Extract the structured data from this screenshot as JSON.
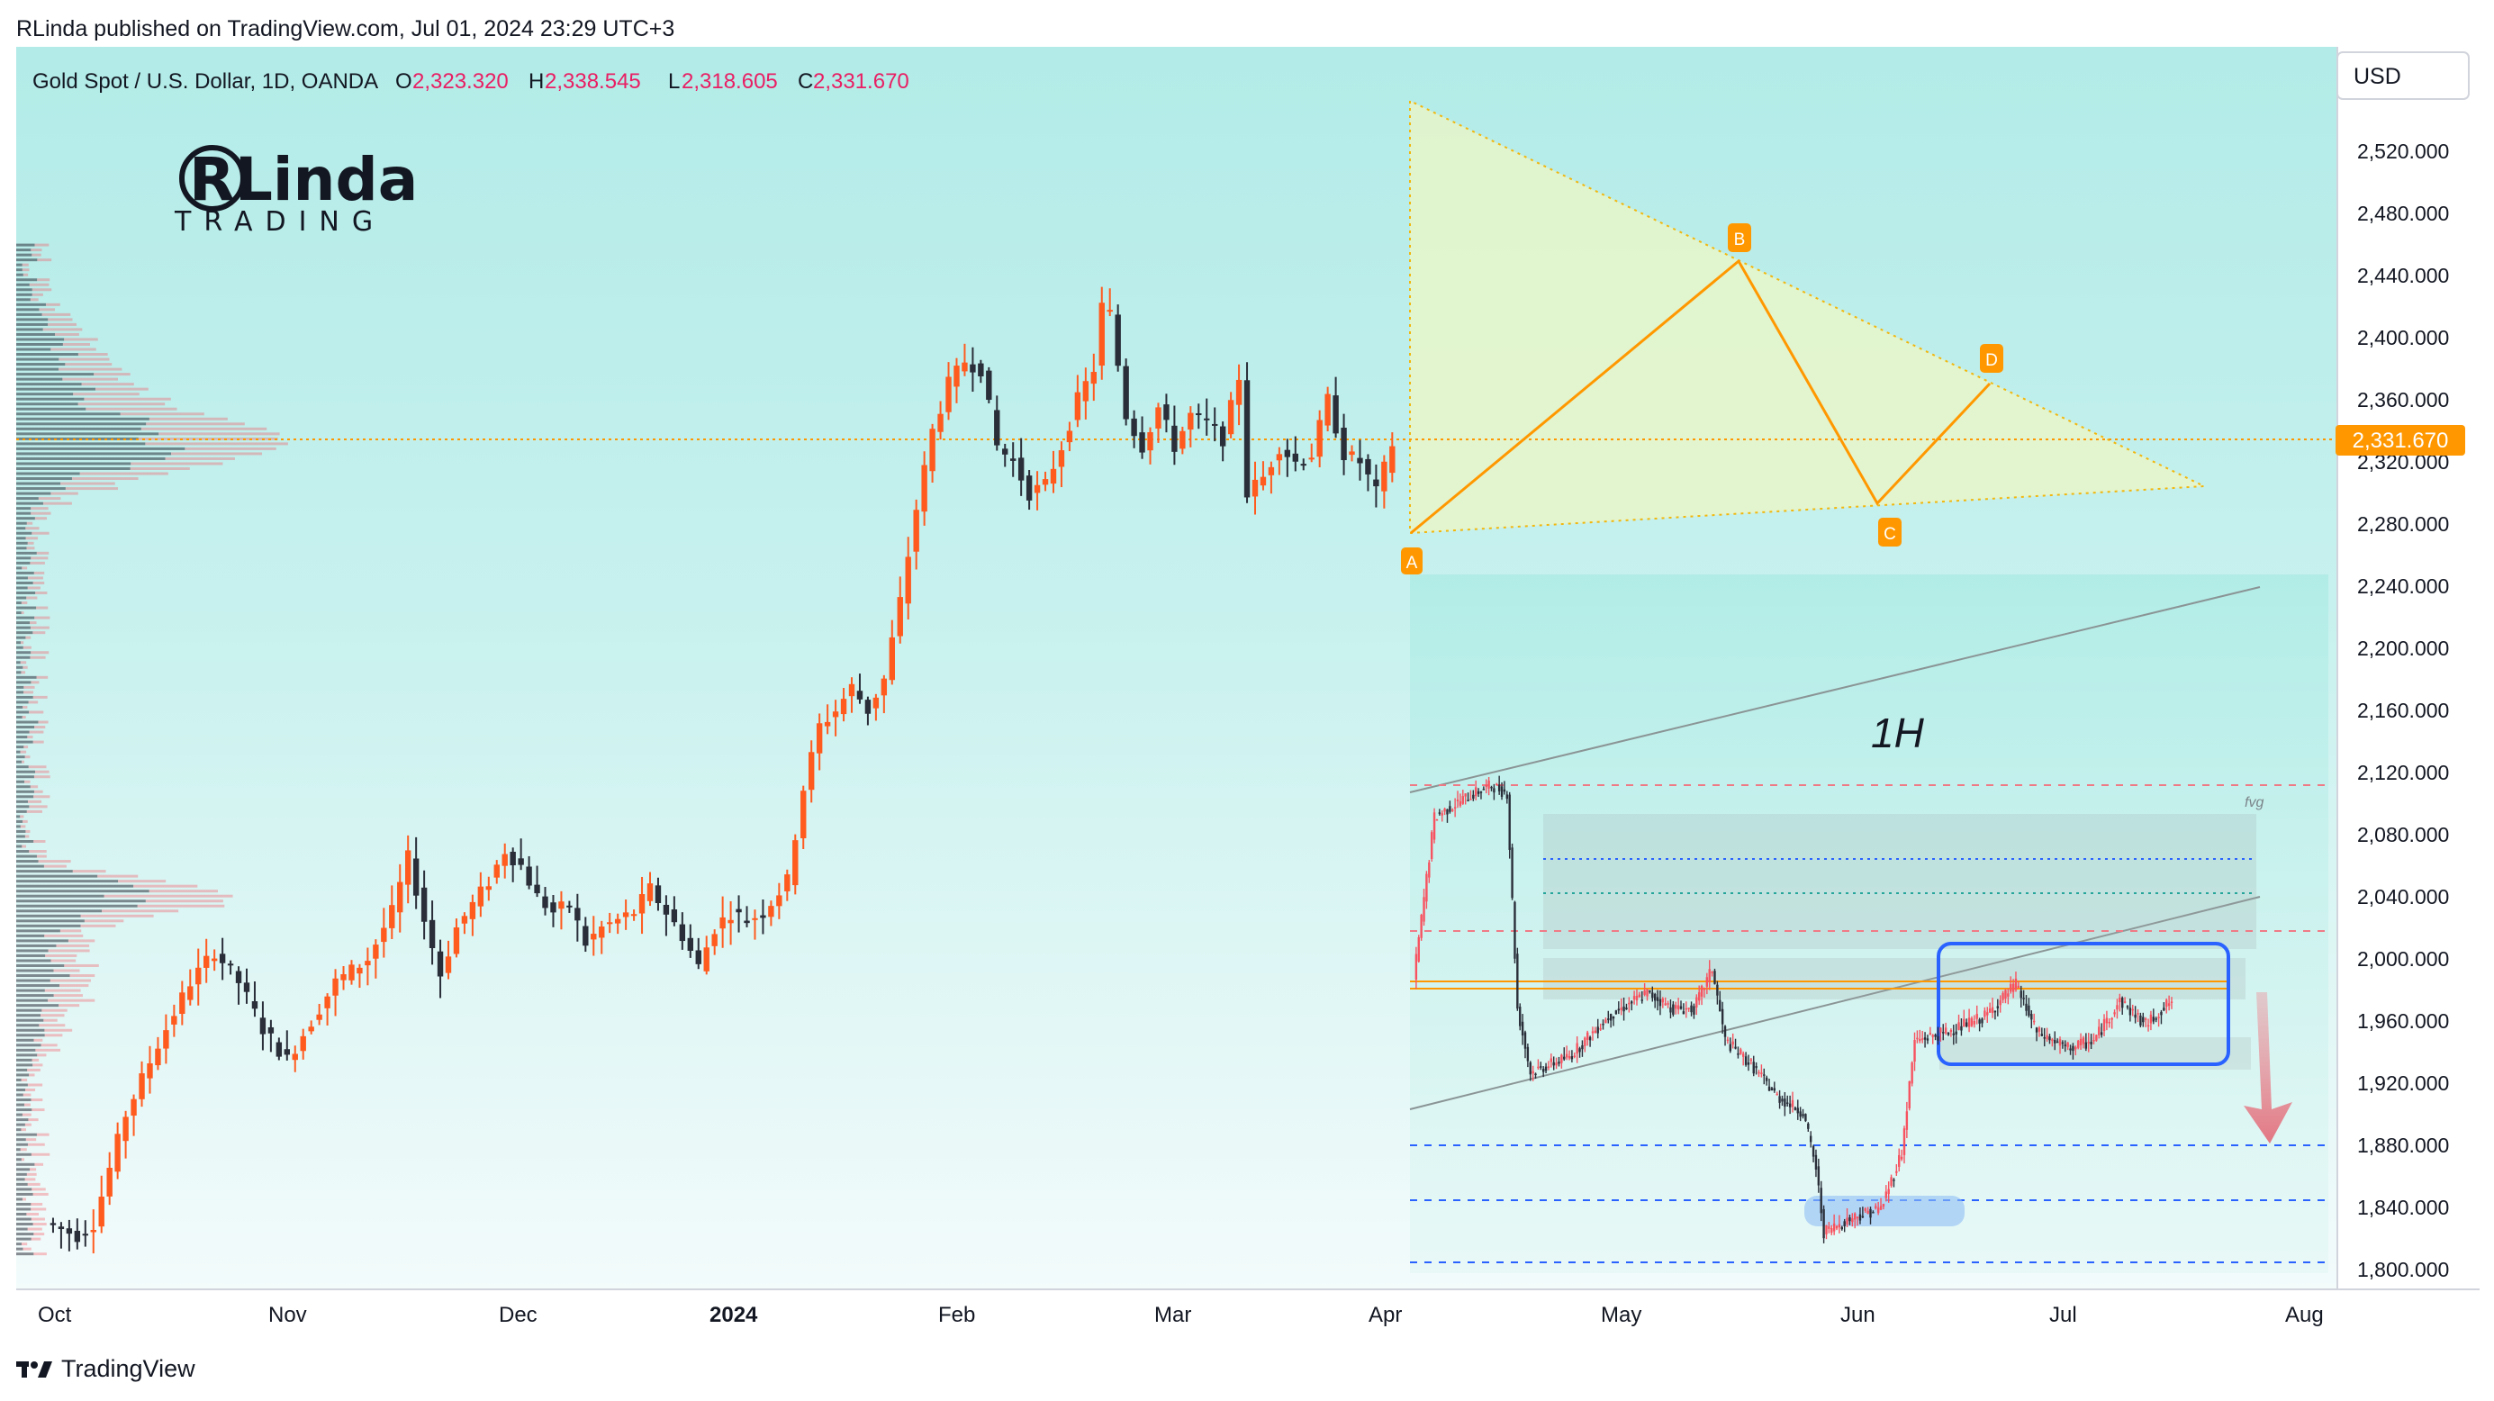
{
  "header": {
    "published": "RLinda published on TradingView.com, Jul 01, 2024 23:29 UTC+3"
  },
  "legend": {
    "symbol": "Gold Spot / U.S. Dollar, 1D, OANDA",
    "o_label": "O",
    "o_value": "2,323.320",
    "h_label": "H",
    "h_value": "2,338.545",
    "l_label": "L",
    "l_value": "2,318.605",
    "c_label": "C",
    "c_value": "2,331.670"
  },
  "currency_button": "USD",
  "logo": {
    "line1": "RLinda",
    "line2": "TRADING"
  },
  "price_tag": "2,331.670",
  "annotations": {
    "timeframe_label": "1H",
    "fvg_label": "fvg",
    "points": [
      "A",
      "B",
      "C",
      "D"
    ]
  },
  "footer": {
    "brand": "TradingView"
  },
  "colors": {
    "up": "#f7525f",
    "up_body": "#ff5b1f",
    "down": "#2a2e39",
    "bg_gradient_top": "#b2ebe8",
    "bg_gradient_bottom": "#f3fbfb",
    "triangle_fill": "#e9f5c4",
    "accent_orange": "#ff9800",
    "label_red": "#e91e63",
    "price_tag_bg": "#ff9800",
    "box_blue": "#2962ff"
  },
  "chart_data": {
    "type": "candlestick",
    "symbol": "XAUUSD",
    "timeframe": "1D",
    "ylim": [
      1780,
      2560
    ],
    "y_ticks": [
      "2,520.000",
      "2,480.000",
      "2,440.000",
      "2,400.000",
      "2,360.000",
      "2,320.000",
      "2,280.000",
      "2,240.000",
      "2,200.000",
      "2,160.000",
      "2,120.000",
      "2,080.000",
      "2,040.000",
      "2,000.000",
      "1,960.000",
      "1,920.000",
      "1,880.000",
      "1,840.000",
      "1,800.000"
    ],
    "x_ticks": [
      {
        "label": "Oct",
        "bold": false
      },
      {
        "label": "Nov",
        "bold": false
      },
      {
        "label": "Dec",
        "bold": false
      },
      {
        "label": "2024",
        "bold": true
      },
      {
        "label": "Feb",
        "bold": false
      },
      {
        "label": "Mar",
        "bold": false
      },
      {
        "label": "Apr",
        "bold": false
      },
      {
        "label": "May",
        "bold": false
      },
      {
        "label": "Jun",
        "bold": false
      },
      {
        "label": "Jul",
        "bold": false
      },
      {
        "label": "Aug",
        "bold": false
      }
    ],
    "last_price": 2331.67,
    "waypoints_daily": [
      [
        0,
        1830
      ],
      [
        4,
        1822
      ],
      [
        6,
        1830
      ],
      [
        10,
        1900
      ],
      [
        14,
        1945
      ],
      [
        18,
        1985
      ],
      [
        21,
        2005
      ],
      [
        24,
        1985
      ],
      [
        27,
        1955
      ],
      [
        30,
        1935
      ],
      [
        33,
        1960
      ],
      [
        36,
        1985
      ],
      [
        40,
        2000
      ],
      [
        43,
        2030
      ],
      [
        45,
        2065
      ],
      [
        47,
        2025
      ],
      [
        49,
        1990
      ],
      [
        51,
        2020
      ],
      [
        53,
        2035
      ],
      [
        55,
        2050
      ],
      [
        57,
        2070
      ],
      [
        59,
        2060
      ],
      [
        61,
        2040
      ],
      [
        63,
        2030
      ],
      [
        65,
        2035
      ],
      [
        67,
        2010
      ],
      [
        69,
        2020
      ],
      [
        71,
        2025
      ],
      [
        73,
        2030
      ],
      [
        75,
        2045
      ],
      [
        77,
        2030
      ],
      [
        79,
        2015
      ],
      [
        81,
        1995
      ],
      [
        83,
        2020
      ],
      [
        85,
        2030
      ],
      [
        87,
        2025
      ],
      [
        89,
        2030
      ],
      [
        92,
        2050
      ],
      [
        94,
        2110
      ],
      [
        96,
        2150
      ],
      [
        98,
        2160
      ],
      [
        100,
        2175
      ],
      [
        102,
        2160
      ],
      [
        104,
        2180
      ],
      [
        106,
        2230
      ],
      [
        108,
        2290
      ],
      [
        110,
        2340
      ],
      [
        112,
        2370
      ],
      [
        114,
        2385
      ],
      [
        116,
        2380
      ],
      [
        118,
        2330
      ],
      [
        120,
        2320
      ],
      [
        122,
        2300
      ],
      [
        124,
        2305
      ],
      [
        126,
        2330
      ],
      [
        128,
        2360
      ],
      [
        130,
        2380
      ],
      [
        131,
        2420
      ],
      [
        132,
        2415
      ],
      [
        134,
        2350
      ],
      [
        136,
        2330
      ],
      [
        138,
        2355
      ],
      [
        140,
        2330
      ],
      [
        142,
        2350
      ],
      [
        144,
        2345
      ],
      [
        146,
        2335
      ],
      [
        148,
        2375
      ],
      [
        149,
        2300
      ],
      [
        151,
        2310
      ],
      [
        153,
        2330
      ],
      [
        155,
        2320
      ],
      [
        157,
        2325
      ],
      [
        159,
        2360
      ],
      [
        161,
        2325
      ],
      [
        163,
        2320
      ],
      [
        165,
        2300
      ],
      [
        167,
        2331.67
      ]
    ],
    "pattern_points": [
      {
        "label": "A",
        "day": 115,
        "price": 2265
      },
      {
        "label": "B",
        "day": 133,
        "price": 2450
      },
      {
        "label": "C",
        "day": 152,
        "price": 2286
      },
      {
        "label": "D",
        "day": 161,
        "price": 2368
      }
    ],
    "inset_1h": {
      "title": "1H",
      "waypoints": [
        [
          0,
          1978
        ],
        [
          8,
          2080
        ],
        [
          20,
          2092
        ],
        [
          30,
          2100
        ],
        [
          36,
          2095
        ],
        [
          40,
          1960
        ],
        [
          45,
          1920
        ],
        [
          60,
          1930
        ],
        [
          75,
          1955
        ],
        [
          90,
          1970
        ],
        [
          100,
          1960
        ],
        [
          108,
          1960
        ],
        [
          115,
          1985
        ],
        [
          120,
          1940
        ],
        [
          130,
          1925
        ],
        [
          140,
          1905
        ],
        [
          150,
          1895
        ],
        [
          155,
          1860
        ],
        [
          158,
          1820
        ],
        [
          170,
          1830
        ],
        [
          180,
          1835
        ],
        [
          188,
          1870
        ],
        [
          193,
          1940
        ],
        [
          205,
          1945
        ],
        [
          220,
          1955
        ],
        [
          232,
          1975
        ],
        [
          240,
          1945
        ],
        [
          252,
          1935
        ],
        [
          262,
          1940
        ],
        [
          272,
          1965
        ],
        [
          282,
          1950
        ],
        [
          292,
          1965
        ]
      ]
    }
  }
}
